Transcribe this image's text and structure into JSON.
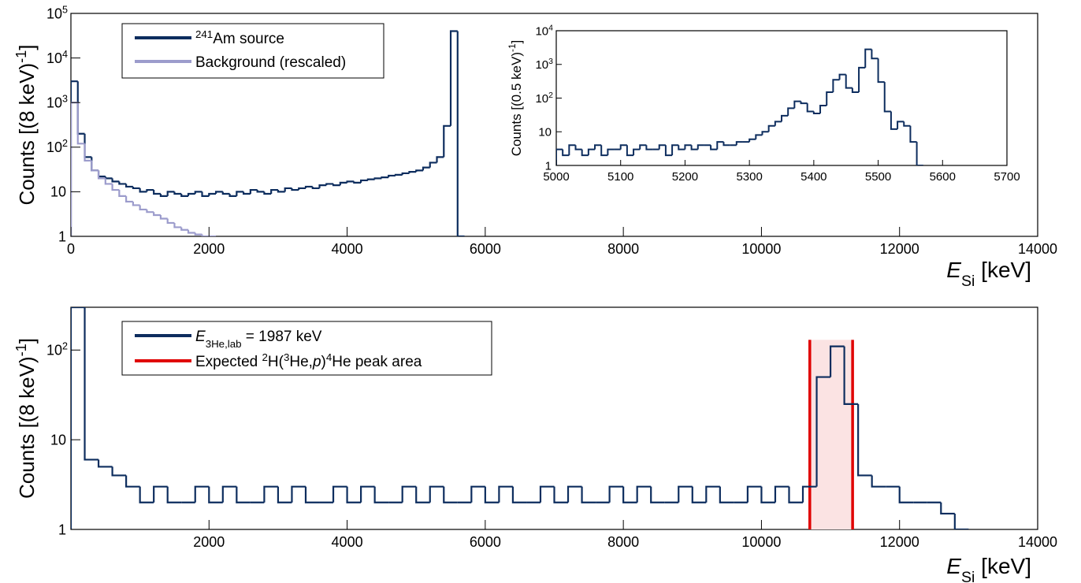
{
  "chart_data": [
    {
      "type": "histogram",
      "log_y": true,
      "ylabel": [
        "Counts [(8 keV)",
        {
          "sup": "-1"
        },
        "]"
      ],
      "xlabel": [
        {
          "i": "E"
        },
        {
          "sub": "Si"
        },
        " [keV]"
      ],
      "xlim": [
        0,
        14000
      ],
      "ylim": [
        1,
        100000
      ],
      "xticks": [
        0,
        2000,
        4000,
        6000,
        8000,
        10000,
        12000,
        14000
      ],
      "yticks": [
        1,
        10,
        {
          "value": 100,
          "label": "10",
          "sup": "2"
        },
        {
          "value": 1000,
          "label": "10",
          "sup": "3"
        },
        {
          "value": 10000,
          "label": "10",
          "sup": "4"
        },
        {
          "value": 100000,
          "label": "10",
          "sup": "5"
        }
      ],
      "series": [
        {
          "name": [
            {
              "sup": "241"
            },
            "Am source"
          ],
          "color": "#0d2d5e",
          "bins": [
            0,
            100,
            200,
            300,
            400,
            500,
            600,
            700,
            800,
            900,
            1000,
            1100,
            1200,
            1300,
            1400,
            1500,
            1600,
            1700,
            1800,
            1900,
            2000,
            2100,
            2200,
            2300,
            2400,
            2500,
            2600,
            2700,
            2800,
            2900,
            3000,
            3100,
            3200,
            3300,
            3400,
            3500,
            3600,
            3700,
            3800,
            3900,
            4000,
            4100,
            4200,
            4300,
            4400,
            4500,
            4600,
            4700,
            4800,
            4900,
            5000,
            5100,
            5200,
            5300,
            5400,
            5500,
            5600,
            5700
          ],
          "values": [
            3000,
            200,
            60,
            30,
            22,
            20,
            17,
            15,
            13,
            12,
            10,
            11,
            9,
            8,
            10,
            9,
            8,
            9,
            10,
            8,
            9,
            10,
            9,
            8,
            10,
            9,
            11,
            10,
            9,
            11,
            10,
            12,
            11,
            12,
            13,
            12,
            14,
            15,
            14,
            16,
            17,
            16,
            18,
            19,
            20,
            21,
            23,
            24,
            26,
            28,
            30,
            35,
            45,
            60,
            300,
            40000,
            1
          ]
        },
        {
          "name": [
            "Background (rescaled)"
          ],
          "color": "#9c9ccc",
          "bins": [
            0,
            100,
            200,
            300,
            400,
            500,
            600,
            700,
            800,
            900,
            1000,
            1100,
            1200,
            1300,
            1400,
            1500,
            1600,
            1700,
            1800,
            1900,
            2000,
            2100
          ],
          "values": [
            1000,
            120,
            50,
            30,
            20,
            15,
            11,
            8,
            6,
            5,
            4,
            3.5,
            3,
            2.5,
            2,
            1.6,
            1.4,
            1.2,
            1.1,
            1,
            1
          ]
        }
      ]
    },
    {
      "type": "histogram",
      "log_y": true,
      "ylabel": [
        "Counts [(0.5 keV)",
        {
          "sup": "-1"
        },
        "]"
      ],
      "xlim": [
        5000,
        5700
      ],
      "ylim": [
        1,
        10000
      ],
      "xticks": [
        5000,
        5100,
        5200,
        5300,
        5400,
        5500,
        5600,
        5700
      ],
      "yticks": [
        1,
        10,
        {
          "value": 100,
          "label": "10",
          "sup": "2"
        },
        {
          "value": 1000,
          "label": "10",
          "sup": "3"
        },
        {
          "value": 10000,
          "label": "10",
          "sup": "4"
        }
      ],
      "series": [
        {
          "color": "#0d2d5e",
          "bins": [
            5000,
            5010,
            5020,
            5030,
            5040,
            5050,
            5060,
            5070,
            5080,
            5090,
            5100,
            5110,
            5120,
            5130,
            5140,
            5150,
            5160,
            5170,
            5180,
            5190,
            5200,
            5210,
            5220,
            5230,
            5240,
            5250,
            5260,
            5270,
            5280,
            5290,
            5300,
            5310,
            5320,
            5330,
            5340,
            5350,
            5360,
            5370,
            5380,
            5390,
            5400,
            5410,
            5420,
            5430,
            5440,
            5450,
            5460,
            5470,
            5480,
            5490,
            5500,
            5510,
            5520,
            5530,
            5540,
            5550,
            5560,
            5570,
            5580,
            5590,
            5600,
            5610,
            5620,
            5630,
            5640,
            5650,
            5660,
            5670,
            5680,
            5690,
            5700
          ],
          "values": [
            3,
            2,
            4,
            3,
            2,
            3,
            4,
            2,
            3,
            3,
            4,
            2,
            3,
            4,
            3,
            3,
            4,
            2,
            4,
            3,
            4,
            3,
            4,
            4,
            3,
            5,
            4,
            4,
            5,
            5,
            6,
            8,
            10,
            15,
            20,
            30,
            50,
            80,
            70,
            40,
            35,
            60,
            150,
            350,
            500,
            200,
            150,
            800,
            2800,
            1500,
            300,
            40,
            12,
            20,
            15,
            5,
            1,
            null,
            null,
            null,
            null,
            null,
            null,
            null,
            null,
            null,
            null,
            null,
            null,
            null
          ]
        }
      ]
    },
    {
      "type": "histogram",
      "log_y": true,
      "ylabel": [
        "Counts [(8 keV)",
        {
          "sup": "-1"
        },
        "]"
      ],
      "xlabel": [
        {
          "i": "E"
        },
        {
          "sub": "Si"
        },
        " [keV]"
      ],
      "xlim": [
        0,
        14000
      ],
      "ylim": [
        1,
        300
      ],
      "xticks": [
        2000,
        4000,
        6000,
        8000,
        10000,
        12000,
        14000
      ],
      "yticks": [
        1,
        10,
        {
          "value": 100,
          "label": "10",
          "sup": "2"
        }
      ],
      "series": [
        {
          "name": [
            {
              "i": "E"
            },
            {
              "sub": "3He,lab"
            },
            " = 1987 keV"
          ],
          "color": "#0d2d5e",
          "bins": [
            0,
            200,
            400,
            600,
            800,
            1000,
            1200,
            1400,
            1600,
            1800,
            2000,
            2200,
            2400,
            2600,
            2800,
            3000,
            3200,
            3400,
            3600,
            3800,
            4000,
            4200,
            4400,
            4600,
            4800,
            5000,
            5200,
            5400,
            5600,
            5800,
            6000,
            6200,
            6400,
            6600,
            6800,
            7000,
            7200,
            7400,
            7600,
            7800,
            8000,
            8200,
            8400,
            8600,
            8800,
            9000,
            9200,
            9400,
            9600,
            9800,
            10000,
            10200,
            10400,
            10600,
            10800,
            11000,
            11200,
            11400,
            11600,
            11800,
            12000,
            12200,
            12400,
            12600,
            12800,
            13000,
            13200,
            13400,
            13600,
            13800,
            14000
          ],
          "values": [
            300,
            6,
            5,
            4,
            3,
            2,
            3,
            2,
            2,
            3,
            2,
            3,
            2,
            2,
            3,
            2,
            3,
            2,
            2,
            3,
            2,
            3,
            2,
            2,
            3,
            2,
            3,
            2,
            2,
            3,
            2,
            3,
            2,
            2,
            3,
            2,
            3,
            2,
            2,
            3,
            2,
            3,
            2,
            2,
            3,
            2,
            3,
            2,
            2,
            3,
            2,
            3,
            2,
            3,
            50,
            110,
            25,
            4,
            3,
            3,
            2,
            2,
            2,
            1.5,
            1,
            null,
            null,
            null,
            null,
            null
          ]
        }
      ],
      "region": {
        "name": [
          "Expected  ",
          {
            "sup": "2"
          },
          "H(",
          {
            "sup": "3"
          },
          "He,",
          {
            "i": "p"
          },
          ")",
          {
            "sup": "4"
          },
          "He  peak area"
        ],
        "color": "#e00000",
        "fill": "#fbe3e3",
        "x": [
          10700,
          11320
        ],
        "top": 130
      }
    }
  ]
}
